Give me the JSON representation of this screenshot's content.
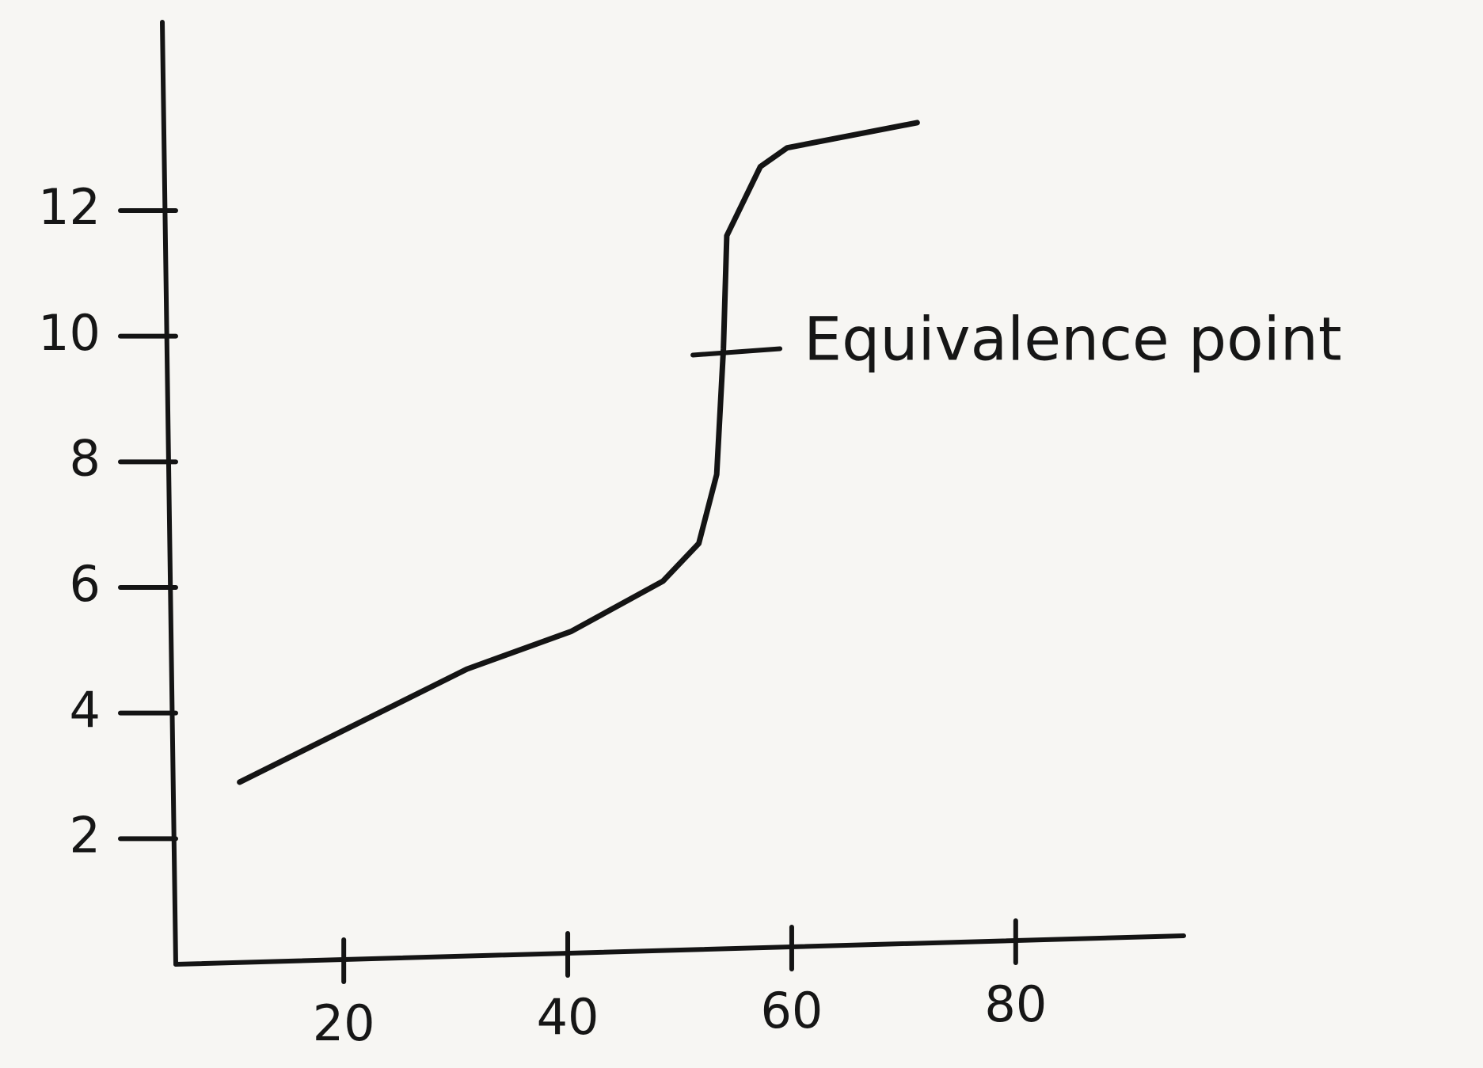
{
  "chart_data": {
    "type": "line",
    "x": [
      10.7,
      31,
      40.3,
      48.5,
      51.7,
      53.3,
      53.9,
      54.2,
      57.2,
      59.6,
      71.2
    ],
    "series": [
      {
        "color": "#141414",
        "values": [
          2.9,
          4.7,
          5.3,
          6.1,
          6.7,
          7.8,
          9.8,
          11.6,
          12.7,
          13,
          13.4
        ]
      }
    ],
    "xlim": [
      5,
      95
    ],
    "ylim": [
      0,
      15
    ],
    "xticks": [
      20,
      40,
      60,
      80
    ],
    "yticks": [
      2,
      4,
      6,
      8,
      10,
      12
    ],
    "annotation": {
      "text": "Equivalence point",
      "x": 54,
      "y": 9.7
    }
  }
}
